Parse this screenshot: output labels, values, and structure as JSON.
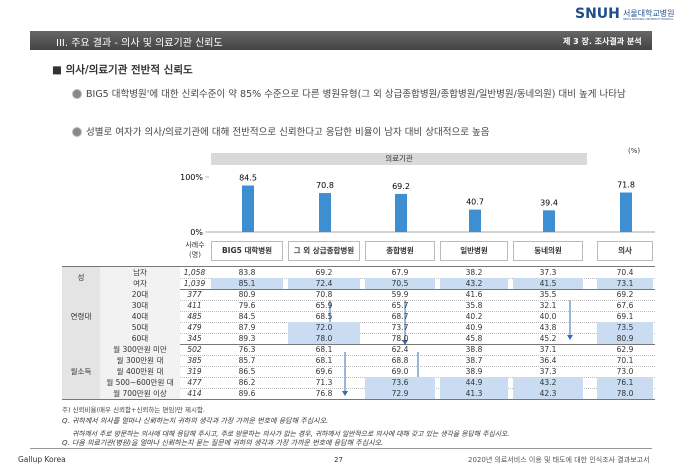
{
  "header": {
    "logo": "SNUH",
    "logo_name": "서울대학교병원",
    "logo_sub": "SEOUL NATIONAL UNIVERSITY HOSPITAL",
    "banner": "III. 주요 결과 - 의사 및 의료기관 신뢰도",
    "chapter": "제 3 장. 조사결과 분석"
  },
  "section_title": "■ 의사/의료기관 전반적 신뢰도",
  "bullets": [
    "BIG5 대학병원'에 대한 신뢰수준이 약 85% 수준으로 다른 병원유형(그 외 상급종합병원/종합병원/일반병원/동네의원) 대비 높게 나타남",
    "성별로 여자가 의사/의료기관에 대해 전반적으로 신뢰한다고 응답한 비율이 남자 대비 상대적으로 높음"
  ],
  "unit": "(%)",
  "group_header": "의료기관",
  "chart_data": {
    "type": "bar",
    "categories": [
      "BIG5 대학병원",
      "그 외 상급종합병원",
      "종합병원",
      "일반병원",
      "동네의원",
      "의사"
    ],
    "values": [
      84.5,
      70.8,
      69.2,
      40.7,
      39.4,
      71.8
    ],
    "color": "#3d8fd1",
    "ylim": [
      0,
      100
    ],
    "yticks": [
      {
        "value": 0,
        "label": "0%"
      },
      {
        "value": 100,
        "label": "100%"
      }
    ]
  },
  "table": {
    "n_header": "사례수 (명)",
    "groups": [
      {
        "label": "성",
        "rows": [
          {
            "label": "남자",
            "n": "1,058",
            "values": [
              "83.8",
              "69.2",
              "67.9",
              "38.2",
              "37.3",
              "70.4"
            ]
          },
          {
            "label": "여자",
            "n": "1,039",
            "values": [
              "85.1",
              "72.4",
              "70.5",
              "43.2",
              "41.5",
              "73.1"
            ]
          }
        ]
      },
      {
        "label": "연령대",
        "rows": [
          {
            "label": "20대",
            "n": "377",
            "values": [
              "80.9",
              "70.8",
              "59.9",
              "41.6",
              "35.5",
              "69.2"
            ]
          },
          {
            "label": "30대",
            "n": "411",
            "values": [
              "79.6",
              "65.9",
              "65.7",
              "35.8",
              "32.1",
              "67.6"
            ]
          },
          {
            "label": "40대",
            "n": "485",
            "values": [
              "84.5",
              "68.5",
              "68.7",
              "40.2",
              "40.0",
              "69.1"
            ]
          },
          {
            "label": "50대",
            "n": "479",
            "values": [
              "87.9",
              "72.0",
              "73.7",
              "40.9",
              "43.8",
              "73.5"
            ]
          },
          {
            "label": "60대",
            "n": "345",
            "values": [
              "89.3",
              "78.0",
              "78.0",
              "45.8",
              "45.2",
              "80.9"
            ]
          }
        ]
      },
      {
        "label": "월소득",
        "rows": [
          {
            "label": "월 300만원 미만",
            "n": "502",
            "values": [
              "76.3",
              "68.1",
              "62.4",
              "38.8",
              "37.1",
              "62.9"
            ]
          },
          {
            "label": "월 300만원 대",
            "n": "385",
            "values": [
              "85.7",
              "68.1",
              "68.8",
              "38.7",
              "36.4",
              "70.1"
            ]
          },
          {
            "label": "월 400만원 대",
            "n": "319",
            "values": [
              "86.5",
              "69.6",
              "69.0",
              "38.9",
              "37.3",
              "73.0"
            ]
          },
          {
            "label": "월 500~600만원 대",
            "n": "477",
            "values": [
              "86.2",
              "71.3",
              "73.6",
              "44.9",
              "43.2",
              "76.1"
            ]
          },
          {
            "label": "월 700만원 이상",
            "n": "414",
            "values": [
              "89.6",
              "76.8",
              "72.9",
              "41.3",
              "42.3",
              "78.0"
            ]
          }
        ]
      }
    ]
  },
  "notes": [
    "주) 신뢰비율(매우 신뢰함+신뢰하는 편임)만 제시함.",
    "Q. 귀하께서 의사를 얼마나 신뢰하는지 귀하의 생각과 가장 가까운 번호에 응답해 주십시오.",
    "귀하께서 주로 방문하는 의사에 대해 응답해 주시고, 주로 방문하는 의사가 없는 경우, 귀하께서 일반적으로 의사에 대해 갖고 있는 생각을 응답해 주십시오.",
    "Q. 다음 의료기관(병원)을 얼마나 신뢰하는지 묻는 질문에 귀하의 생각과 가장 가까운 번호에 응답해 주십시오."
  ],
  "footer": {
    "left": "Gallup Korea",
    "page": "27",
    "right": "2020년 의료서비스 이용 및 태도에 대한 인식조사 결과보고서"
  }
}
